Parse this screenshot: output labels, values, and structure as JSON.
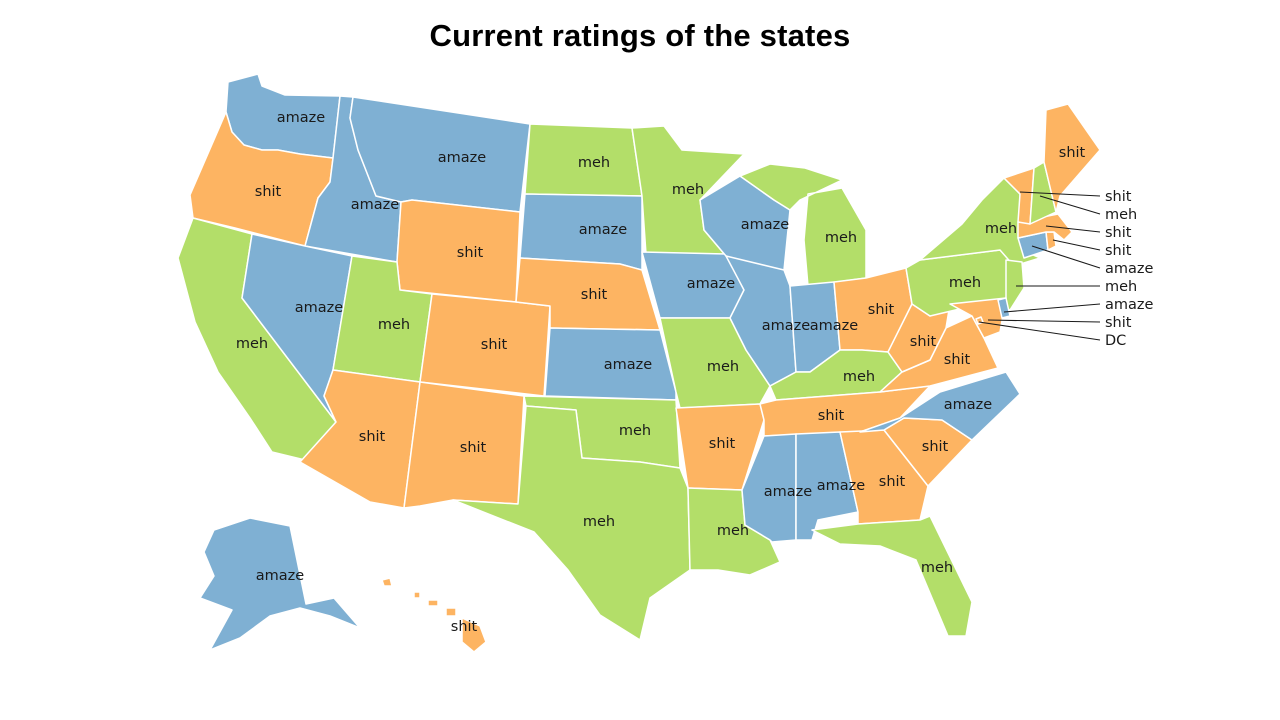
{
  "title": "Current ratings of the states",
  "colors": {
    "amaze": "#7fb0d3",
    "meh": "#b3de69",
    "shit": "#fdb462"
  },
  "states": {
    "WA": "amaze",
    "OR": "shit",
    "CA": "meh",
    "ID": "amaze",
    "NV": "amaze",
    "MT": "amaze",
    "WY": "shit",
    "UT": "meh",
    "AZ": "shit",
    "CO": "shit",
    "NM": "shit",
    "ND": "meh",
    "SD": "amaze",
    "NE": "shit",
    "KS": "amaze",
    "OK": "meh",
    "TX": "meh",
    "MN": "meh",
    "IA": "amaze",
    "MO": "meh",
    "AR": "shit",
    "LA": "meh",
    "WI": "amaze",
    "IL": "amaze",
    "MI": "meh",
    "IN": "amaze",
    "OH": "shit",
    "KY": "meh",
    "TN": "shit",
    "MS": "amaze",
    "AL": "amaze",
    "GA": "shit",
    "FL": "meh",
    "SC": "shit",
    "NC": "amaze",
    "VA": "shit",
    "WV": "shit",
    "PA": "meh",
    "NY": "meh",
    "NJ": "meh",
    "MD": "shit",
    "DE": "amaze",
    "DC": "shit",
    "CT": "amaze",
    "RI": "shit",
    "MA": "shit",
    "VT": "shit",
    "NH": "meh",
    "ME": "shit",
    "AK": "amaze",
    "HI": "shit"
  },
  "callouts": [
    {
      "state": "VT",
      "text": "shit"
    },
    {
      "state": "NH",
      "text": "meh"
    },
    {
      "state": "MA",
      "text": "shit"
    },
    {
      "state": "RI",
      "text": "shit"
    },
    {
      "state": "CT",
      "text": "amaze"
    },
    {
      "state": "NJ",
      "text": "meh"
    },
    {
      "state": "DE",
      "text": "amaze"
    },
    {
      "state": "MD",
      "text": "shit"
    },
    {
      "state": "DC",
      "text": "DC"
    }
  ]
}
